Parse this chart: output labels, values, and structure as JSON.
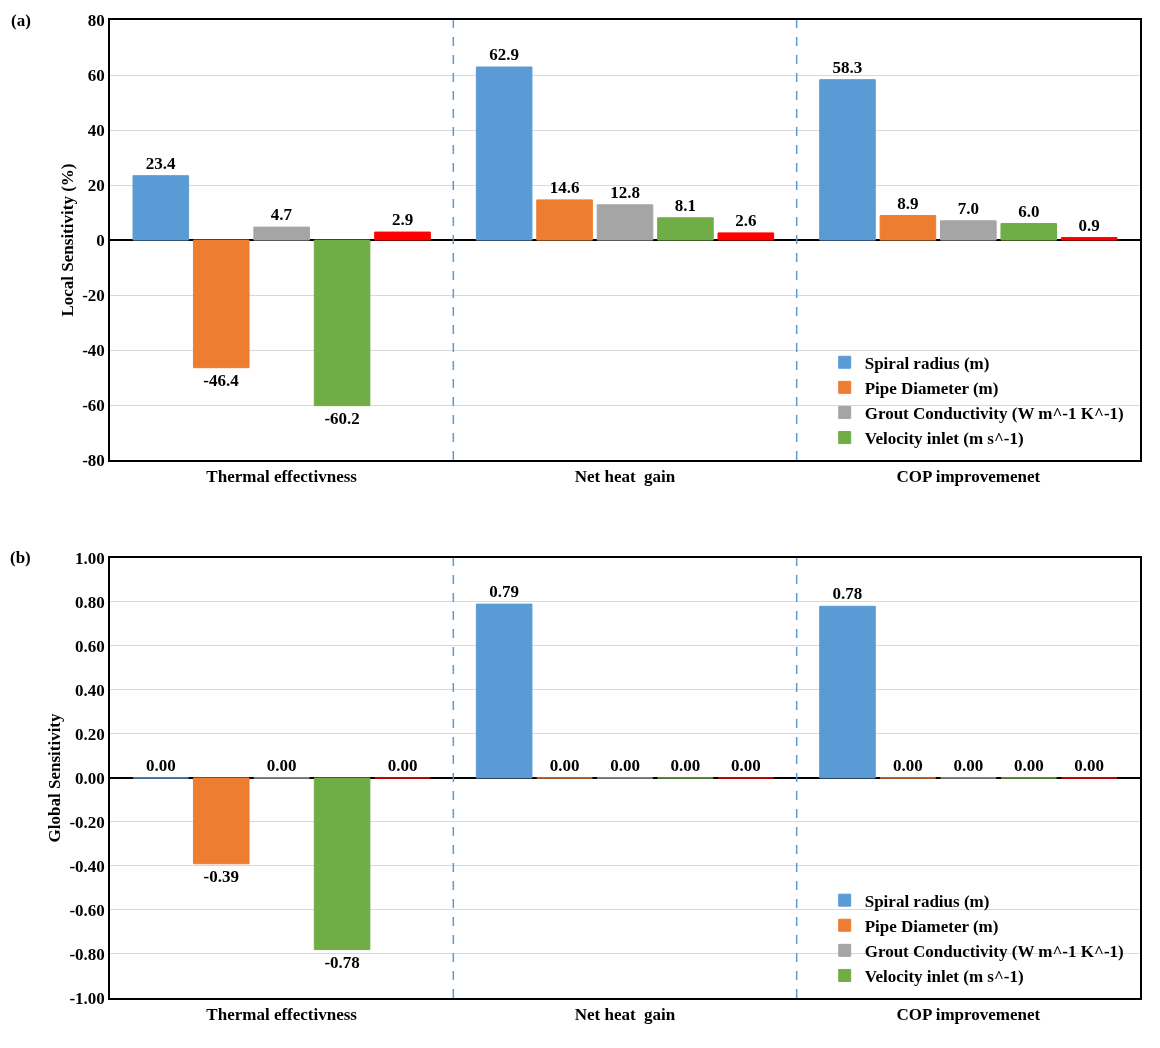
{
  "chart_data": [
    {
      "type": "bar",
      "ylabel": "Local Sensitivity (%)",
      "annotations": [
        "(a)"
      ],
      "categories": [
        "Thermal effectivness",
        "Net heat  gain",
        "COP improvemenet"
      ],
      "ylim": [
        -80,
        80
      ],
      "yticks": [
        -80,
        -60,
        -40,
        -20,
        0,
        20,
        40,
        60,
        80
      ],
      "grid": "y",
      "legend": "bottom right",
      "series": [
        {
          "name": "Spiral radius (m)",
          "color": "#5b9bd5",
          "values": [
            23.4,
            62.9,
            58.3
          ],
          "value_labels": [
            "23.4",
            "62.9",
            "58.3"
          ]
        },
        {
          "name": "Pipe Diameter (m)",
          "color": "#ed7d31",
          "values": [
            -46.4,
            14.6,
            8.9
          ],
          "value_labels": [
            "-46.4",
            "14.6",
            "8.9"
          ]
        },
        {
          "name": "Grout Conductivity (W m^-1 K^-1)",
          "color": "#a5a5a5",
          "values": [
            4.7,
            12.8,
            7.0
          ],
          "value_labels": [
            "4.7",
            "12.8",
            "7.0"
          ]
        },
        {
          "name": "Velocity inlet (m s^-1)",
          "color": "#70ad47",
          "values": [
            -60.2,
            8.1,
            6.0
          ],
          "value_labels": [
            "-60.2",
            "8.1",
            "6.0"
          ]
        },
        {
          "color": "#ff0000",
          "values": [
            2.9,
            2.6,
            0.9
          ],
          "value_labels": [
            "2.9",
            "2.6",
            "0.9"
          ]
        }
      ]
    },
    {
      "type": "bar",
      "ylabel": "Global Sensitivity",
      "annotations": [
        "(b)"
      ],
      "categories": [
        "Thermal effectivness",
        "Net heat  gain",
        "COP improvemenet"
      ],
      "ylim": [
        -1,
        1
      ],
      "yticks": [
        {
          "value": -1,
          "label": "-1.00"
        },
        {
          "value": -0.8,
          "label": "-0.80"
        },
        {
          "value": -0.6,
          "label": "-0.60"
        },
        {
          "value": -0.4,
          "label": "-0.40"
        },
        {
          "value": -0.2,
          "label": "-0.20"
        },
        {
          "value": 0,
          "label": "0.00"
        },
        {
          "value": 0.2,
          "label": "0.20"
        },
        {
          "value": 0.4,
          "label": "0.40"
        },
        {
          "value": 0.6,
          "label": "0.60"
        },
        {
          "value": 0.8,
          "label": "0.80"
        },
        {
          "value": 1,
          "label": "1.00"
        }
      ],
      "grid": "y",
      "legend": "bottom right",
      "series": [
        {
          "name": "Spiral radius (m)",
          "color": "#5b9bd5",
          "values": [
            0,
            0.79,
            0.78
          ],
          "value_labels": [
            "0.00",
            "0.79",
            "0.78"
          ]
        },
        {
          "name": "Pipe Diameter (m)",
          "color": "#ed7d31",
          "values": [
            -0.39,
            0,
            0
          ],
          "value_labels": [
            "-0.39",
            "0.00",
            "0.00"
          ]
        },
        {
          "name": "Grout Conductivity (W m^-1 K^-1)",
          "color": "#a5a5a5",
          "values": [
            0,
            0,
            0
          ],
          "value_labels": [
            "0.00",
            "0.00",
            "0.00"
          ]
        },
        {
          "name": "Velocity inlet (m s^-1)",
          "color": "#70ad47",
          "values": [
            -0.78,
            0,
            0
          ],
          "value_labels": [
            "-0.78",
            "0.00",
            "0.00"
          ]
        },
        {
          "color": "#ff0000",
          "values": [
            0,
            0,
            0
          ],
          "value_labels": [
            "0.00",
            "0.00",
            "0.00"
          ]
        }
      ]
    }
  ]
}
